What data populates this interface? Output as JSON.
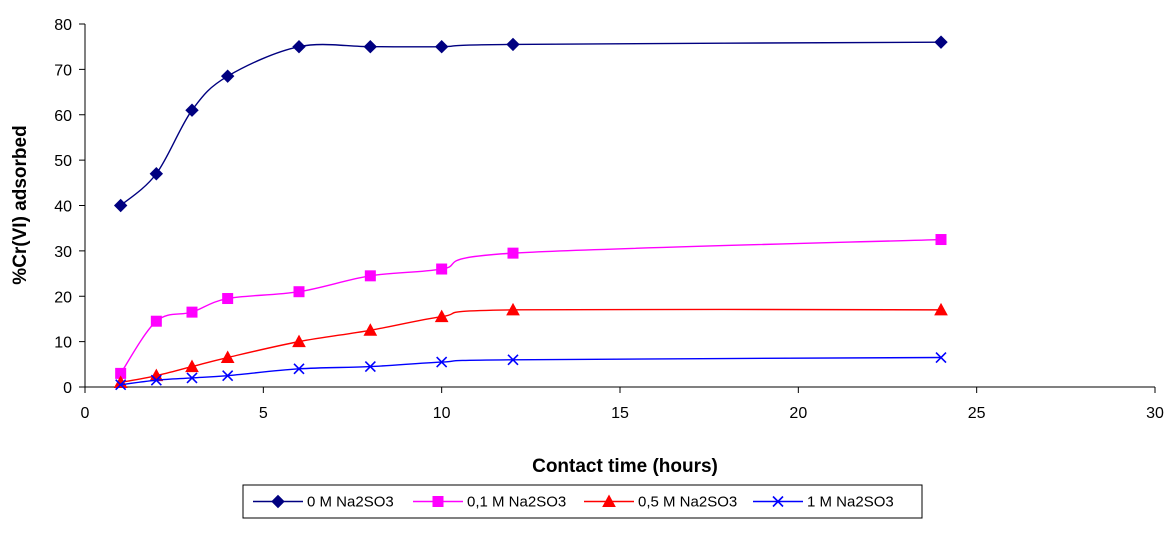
{
  "chart_data": {
    "type": "line",
    "title": "",
    "xlabel": "Contact time (hours)",
    "ylabel": "%Cr(VI) adsorbed",
    "xlim": [
      0,
      30
    ],
    "ylim": [
      0,
      80
    ],
    "xticks": [
      0,
      5,
      10,
      15,
      20,
      25,
      30
    ],
    "yticks": [
      0,
      10,
      20,
      30,
      40,
      50,
      60,
      70,
      80
    ],
    "grid": false,
    "legend_position": "bottom",
    "smooth": true,
    "series": [
      {
        "name": "0 M Na2SO3",
        "marker": "diamond",
        "color": "#000080",
        "x": [
          1,
          2,
          3,
          4,
          6,
          8,
          10,
          12,
          24
        ],
        "y": [
          40,
          47,
          61,
          68.5,
          75,
          75,
          75,
          75.5,
          76
        ]
      },
      {
        "name": "0,1 M Na2SO3",
        "marker": "square",
        "color": "#FF00FF",
        "x": [
          1,
          2,
          3,
          4,
          6,
          8,
          10,
          12,
          24
        ],
        "y": [
          3,
          14.5,
          16.5,
          19.5,
          21,
          24.5,
          26,
          29.5,
          32.5
        ]
      },
      {
        "name": "0,5 M Na2SO3",
        "marker": "triangle",
        "color": "#FF0000",
        "x": [
          1,
          2,
          3,
          4,
          6,
          8,
          10,
          12,
          24
        ],
        "y": [
          1,
          2.5,
          4.5,
          6.5,
          10,
          12.5,
          15.5,
          17,
          17
        ]
      },
      {
        "name": "1 M Na2SO3",
        "marker": "x",
        "color": "#0000FF",
        "x": [
          1,
          2,
          3,
          4,
          6,
          8,
          10,
          12,
          24
        ],
        "y": [
          0.5,
          1.5,
          2,
          2.5,
          4,
          4.5,
          5.5,
          6,
          6.5
        ]
      }
    ]
  }
}
